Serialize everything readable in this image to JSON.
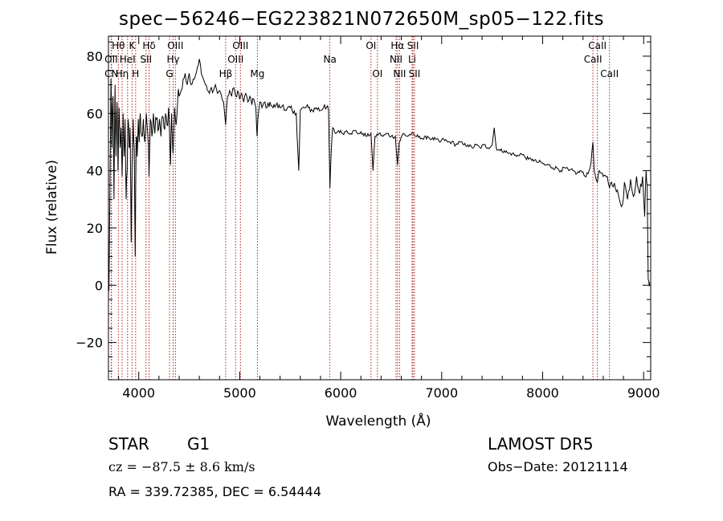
{
  "title": "spec−56246−EG223821N072650M_sp05−122.fits",
  "footer": {
    "class_label": "STAR",
    "subclass": "G1",
    "cz_text": "cz = −87.5 ± 8.6 km/s",
    "radec_text": "RA = 339.72385, DEC =   6.54444",
    "survey": "LAMOST DR5",
    "obs_date": "Obs−Date: 20121114"
  },
  "colors": {
    "spectrum": "#000000",
    "line_markers": "#b22222",
    "axes": "#000000"
  },
  "chart_data": {
    "type": "line",
    "xlabel": "Wavelength (Å)",
    "ylabel": "Flux (relative)",
    "xlim": [
      3700,
      9070
    ],
    "ylim": [
      -33,
      87
    ],
    "xticks": [
      4000,
      5000,
      6000,
      7000,
      8000,
      9000
    ],
    "yticks": [
      -20,
      0,
      20,
      40,
      60,
      80
    ],
    "grid": false,
    "legend": "none",
    "spectrum_anchors": [
      [
        3705,
        -2
      ],
      [
        3715,
        35
      ],
      [
        3725,
        72
      ],
      [
        3735,
        48
      ],
      [
        3745,
        66
      ],
      [
        3755,
        30
      ],
      [
        3765,
        70
      ],
      [
        3775,
        45
      ],
      [
        3785,
        64
      ],
      [
        3795,
        40
      ],
      [
        3805,
        62
      ],
      [
        3815,
        48
      ],
      [
        3825,
        55
      ],
      [
        3835,
        38
      ],
      [
        3845,
        60
      ],
      [
        3855,
        45
      ],
      [
        3865,
        58
      ],
      [
        3875,
        30
      ],
      [
        3885,
        40
      ],
      [
        3895,
        58
      ],
      [
        3905,
        48
      ],
      [
        3915,
        55
      ],
      [
        3925,
        15
      ],
      [
        3935,
        42
      ],
      [
        3945,
        58
      ],
      [
        3955,
        48
      ],
      [
        3965,
        10
      ],
      [
        3975,
        52
      ],
      [
        3985,
        45
      ],
      [
        3995,
        58
      ],
      [
        4005,
        50
      ],
      [
        4015,
        60
      ],
      [
        4030,
        52
      ],
      [
        4045,
        58
      ],
      [
        4060,
        50
      ],
      [
        4075,
        60
      ],
      [
        4090,
        52
      ],
      [
        4102,
        38
      ],
      [
        4115,
        58
      ],
      [
        4130,
        52
      ],
      [
        4145,
        60
      ],
      [
        4160,
        53
      ],
      [
        4175,
        58
      ],
      [
        4190,
        54
      ],
      [
        4205,
        58
      ],
      [
        4220,
        52
      ],
      [
        4235,
        59
      ],
      [
        4250,
        55
      ],
      [
        4265,
        60
      ],
      [
        4280,
        56
      ],
      [
        4295,
        62
      ],
      [
        4305,
        54
      ],
      [
        4315,
        42
      ],
      [
        4325,
        60
      ],
      [
        4340,
        46
      ],
      [
        4355,
        62
      ],
      [
        4370,
        56
      ],
      [
        4385,
        64
      ],
      [
        4400,
        66
      ],
      [
        4420,
        68
      ],
      [
        4440,
        72
      ],
      [
        4460,
        74
      ],
      [
        4480,
        70
      ],
      [
        4500,
        74
      ],
      [
        4520,
        70
      ],
      [
        4540,
        72
      ],
      [
        4560,
        73
      ],
      [
        4580,
        76
      ],
      [
        4600,
        79
      ],
      [
        4620,
        74
      ],
      [
        4640,
        72
      ],
      [
        4660,
        70
      ],
      [
        4680,
        68
      ],
      [
        4700,
        67
      ],
      [
        4720,
        69
      ],
      [
        4740,
        68
      ],
      [
        4760,
        70
      ],
      [
        4780,
        67
      ],
      [
        4800,
        68
      ],
      [
        4820,
        66
      ],
      [
        4840,
        64
      ],
      [
        4861,
        56
      ],
      [
        4880,
        66
      ],
      [
        4900,
        68
      ],
      [
        4920,
        66
      ],
      [
        4940,
        69
      ],
      [
        4960,
        66
      ],
      [
        4980,
        68
      ],
      [
        5000,
        65
      ],
      [
        5020,
        67
      ],
      [
        5040,
        64
      ],
      [
        5060,
        67
      ],
      [
        5080,
        64
      ],
      [
        5100,
        66
      ],
      [
        5120,
        63
      ],
      [
        5140,
        65
      ],
      [
        5160,
        62
      ],
      [
        5172,
        52
      ],
      [
        5180,
        58
      ],
      [
        5200,
        64
      ],
      [
        5220,
        62
      ],
      [
        5250,
        64
      ],
      [
        5270,
        62
      ],
      [
        5300,
        64
      ],
      [
        5330,
        62
      ],
      [
        5360,
        63
      ],
      [
        5400,
        62
      ],
      [
        5430,
        63
      ],
      [
        5460,
        61
      ],
      [
        5500,
        62
      ],
      [
        5530,
        60
      ],
      [
        5560,
        60
      ],
      [
        5585,
        40
      ],
      [
        5600,
        61
      ],
      [
        5640,
        62
      ],
      [
        5680,
        62
      ],
      [
        5720,
        61
      ],
      [
        5760,
        62
      ],
      [
        5800,
        61
      ],
      [
        5840,
        63
      ],
      [
        5880,
        61
      ],
      [
        5893,
        34
      ],
      [
        5905,
        46
      ],
      [
        5920,
        55
      ],
      [
        5950,
        53
      ],
      [
        5980,
        54
      ],
      [
        6020,
        53
      ],
      [
        6060,
        54
      ],
      [
        6100,
        53
      ],
      [
        6140,
        54
      ],
      [
        6180,
        53
      ],
      [
        6220,
        53
      ],
      [
        6260,
        52
      ],
      [
        6300,
        53
      ],
      [
        6320,
        40
      ],
      [
        6340,
        52
      ],
      [
        6380,
        53
      ],
      [
        6420,
        52
      ],
      [
        6460,
        53
      ],
      [
        6500,
        52
      ],
      [
        6540,
        52
      ],
      [
        6563,
        42
      ],
      [
        6580,
        50
      ],
      [
        6620,
        53
      ],
      [
        6660,
        52
      ],
      [
        6700,
        53
      ],
      [
        6740,
        52
      ],
      [
        6780,
        52
      ],
      [
        6820,
        51
      ],
      [
        6860,
        52
      ],
      [
        6900,
        51
      ],
      [
        6940,
        51
      ],
      [
        6980,
        50
      ],
      [
        7020,
        51
      ],
      [
        7060,
        50
      ],
      [
        7100,
        50
      ],
      [
        7140,
        49
      ],
      [
        7180,
        50
      ],
      [
        7220,
        49
      ],
      [
        7260,
        49
      ],
      [
        7300,
        48
      ],
      [
        7340,
        49
      ],
      [
        7380,
        48
      ],
      [
        7420,
        49
      ],
      [
        7460,
        48
      ],
      [
        7500,
        49
      ],
      [
        7520,
        55
      ],
      [
        7540,
        48
      ],
      [
        7580,
        47
      ],
      [
        7620,
        47
      ],
      [
        7660,
        46
      ],
      [
        7700,
        46
      ],
      [
        7740,
        45
      ],
      [
        7780,
        46
      ],
      [
        7820,
        45
      ],
      [
        7860,
        44
      ],
      [
        7900,
        44
      ],
      [
        7940,
        43
      ],
      [
        7980,
        43
      ],
      [
        8020,
        42
      ],
      [
        8060,
        42
      ],
      [
        8100,
        41
      ],
      [
        8140,
        41
      ],
      [
        8180,
        40
      ],
      [
        8220,
        41
      ],
      [
        8260,
        40
      ],
      [
        8300,
        40
      ],
      [
        8340,
        39
      ],
      [
        8380,
        40
      ],
      [
        8420,
        38
      ],
      [
        8460,
        40
      ],
      [
        8480,
        43
      ],
      [
        8498,
        50
      ],
      [
        8510,
        40
      ],
      [
        8542,
        36
      ],
      [
        8560,
        40
      ],
      [
        8600,
        38
      ],
      [
        8640,
        38
      ],
      [
        8662,
        34
      ],
      [
        8680,
        36
      ],
      [
        8720,
        34
      ],
      [
        8760,
        30
      ],
      [
        8790,
        28
      ],
      [
        8810,
        36
      ],
      [
        8840,
        30
      ],
      [
        8870,
        37
      ],
      [
        8900,
        31
      ],
      [
        8930,
        38
      ],
      [
        8960,
        32
      ],
      [
        8990,
        38
      ],
      [
        9010,
        24
      ],
      [
        9025,
        40
      ],
      [
        9035,
        35
      ],
      [
        9045,
        2
      ],
      [
        9055,
        0
      ],
      [
        9060,
        1
      ]
    ],
    "line_markers": [
      {
        "label": "Hθ",
        "wavelength": 3798,
        "row": 0
      },
      {
        "label": "OII",
        "wavelength": 3727,
        "row": 1
      },
      {
        "label": "CN",
        "wavelength": 3730,
        "row": 2
      },
      {
        "label": "Hη",
        "wavelength": 3835,
        "row": 2
      },
      {
        "label": "K",
        "wavelength": 3934,
        "row": 0
      },
      {
        "label": "HeI",
        "wavelength": 3889,
        "row": 1
      },
      {
        "label": "H",
        "wavelength": 3969,
        "row": 2
      },
      {
        "label": "Hδ",
        "wavelength": 4102,
        "row": 0
      },
      {
        "label": "SII",
        "wavelength": 4072,
        "row": 1
      },
      {
        "label": "OIII",
        "wavelength": 4363,
        "row": 0
      },
      {
        "label": "Hγ",
        "wavelength": 4341,
        "row": 1
      },
      {
        "label": "G",
        "wavelength": 4305,
        "row": 2
      },
      {
        "label": "Hβ",
        "wavelength": 4861,
        "row": 2
      },
      {
        "label": "OIII",
        "wavelength": 5007,
        "row": 0
      },
      {
        "label": "OIII",
        "wavelength": 4959,
        "row": 1
      },
      {
        "label": "Mg",
        "wavelength": 5175,
        "row": 2
      },
      {
        "label": "Na",
        "wavelength": 5893,
        "row": 1
      },
      {
        "label": "OI",
        "wavelength": 6300,
        "row": 0
      },
      {
        "label": "OI",
        "wavelength": 6364,
        "row": 2
      },
      {
        "label": "Hα",
        "wavelength": 6563,
        "row": 0
      },
      {
        "label": "NII",
        "wavelength": 6548,
        "row": 1
      },
      {
        "label": "NII",
        "wavelength": 6583,
        "row": 2
      },
      {
        "label": "SII",
        "wavelength": 6716,
        "row": 0
      },
      {
        "label": "Li",
        "wavelength": 6707,
        "row": 1
      },
      {
        "label": "SII",
        "wavelength": 6731,
        "row": 2
      },
      {
        "label": "CaII",
        "wavelength": 8542,
        "row": 0
      },
      {
        "label": "CaII",
        "wavelength": 8498,
        "row": 1
      },
      {
        "label": "CaII",
        "wavelength": 8662,
        "row": 2
      }
    ]
  }
}
